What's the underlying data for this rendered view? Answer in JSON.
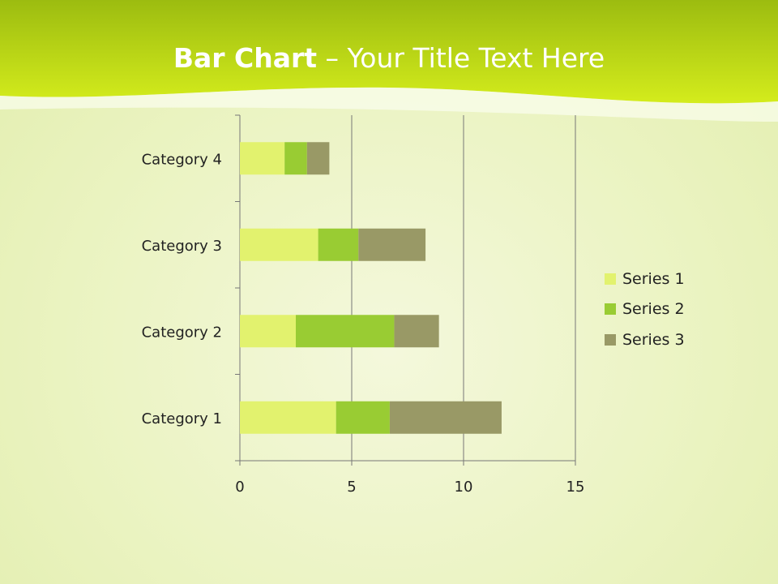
{
  "title": {
    "bold": "Bar Chart",
    "rest": " – Your Title Text Here"
  },
  "chart_data": {
    "type": "bar",
    "orientation": "horizontal",
    "stacked": true,
    "categories": [
      "Category 1",
      "Category 2",
      "Category 3",
      "Category 4"
    ],
    "series": [
      {
        "name": "Series 1",
        "values": [
          4.3,
          2.5,
          3.5,
          2.0
        ],
        "color": "#e2f26e"
      },
      {
        "name": "Series 2",
        "values": [
          2.4,
          4.4,
          1.8,
          1.0
        ],
        "color": "#99cc33"
      },
      {
        "name": "Series 3",
        "values": [
          5.0,
          2.0,
          3.0,
          1.0
        ],
        "color": "#999966"
      }
    ],
    "xlim": [
      0,
      15
    ],
    "xticks": [
      "0",
      "5",
      "10",
      "15"
    ],
    "grid": true,
    "legend": "right"
  }
}
